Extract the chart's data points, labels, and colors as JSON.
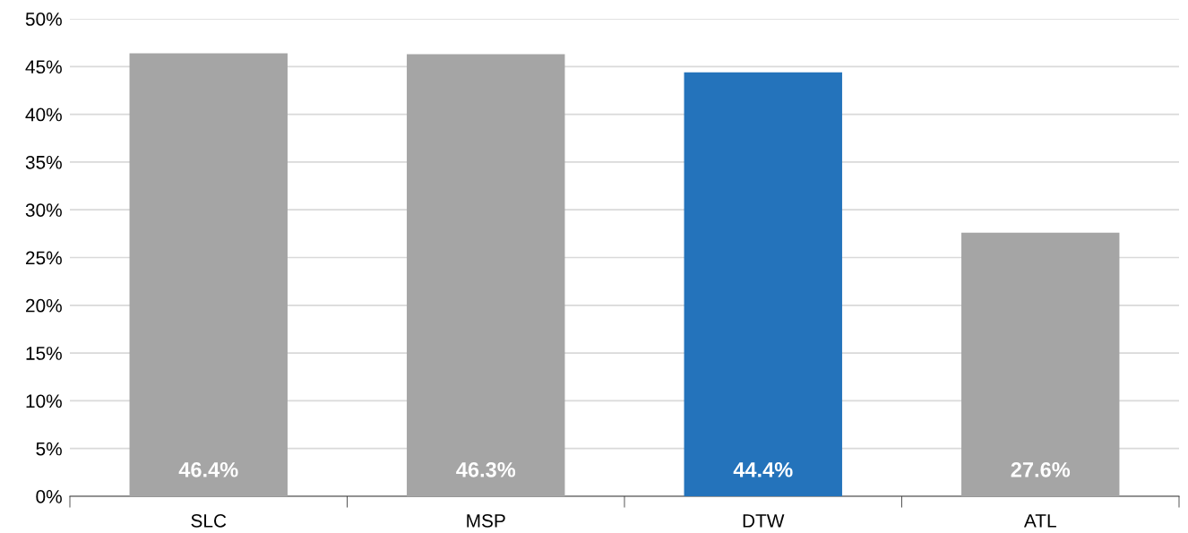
{
  "chart_data": {
    "type": "bar",
    "categories": [
      "SLC",
      "MSP",
      "DTW",
      "ATL"
    ],
    "values": [
      46.4,
      46.3,
      44.4,
      27.6
    ],
    "colors": [
      "#a5a5a5",
      "#a5a5a5",
      "#2473bb",
      "#a5a5a5"
    ],
    "value_labels": [
      "46.4%",
      "46.3%",
      "44.4%",
      "27.6%"
    ],
    "ylim": [
      0,
      50
    ],
    "yticks": [
      {
        "value": 0,
        "label": "0%"
      },
      {
        "value": 5,
        "label": "5%"
      },
      {
        "value": 10,
        "label": "10%"
      },
      {
        "value": 15,
        "label": "15%"
      },
      {
        "value": 20,
        "label": "20%"
      },
      {
        "value": 25,
        "label": "25%"
      },
      {
        "value": 30,
        "label": "30%"
      },
      {
        "value": 35,
        "label": "35%"
      },
      {
        "value": 40,
        "label": "40%"
      },
      {
        "value": 45,
        "label": "45%"
      },
      {
        "value": 50,
        "label": "50%"
      }
    ],
    "grid": "y"
  }
}
